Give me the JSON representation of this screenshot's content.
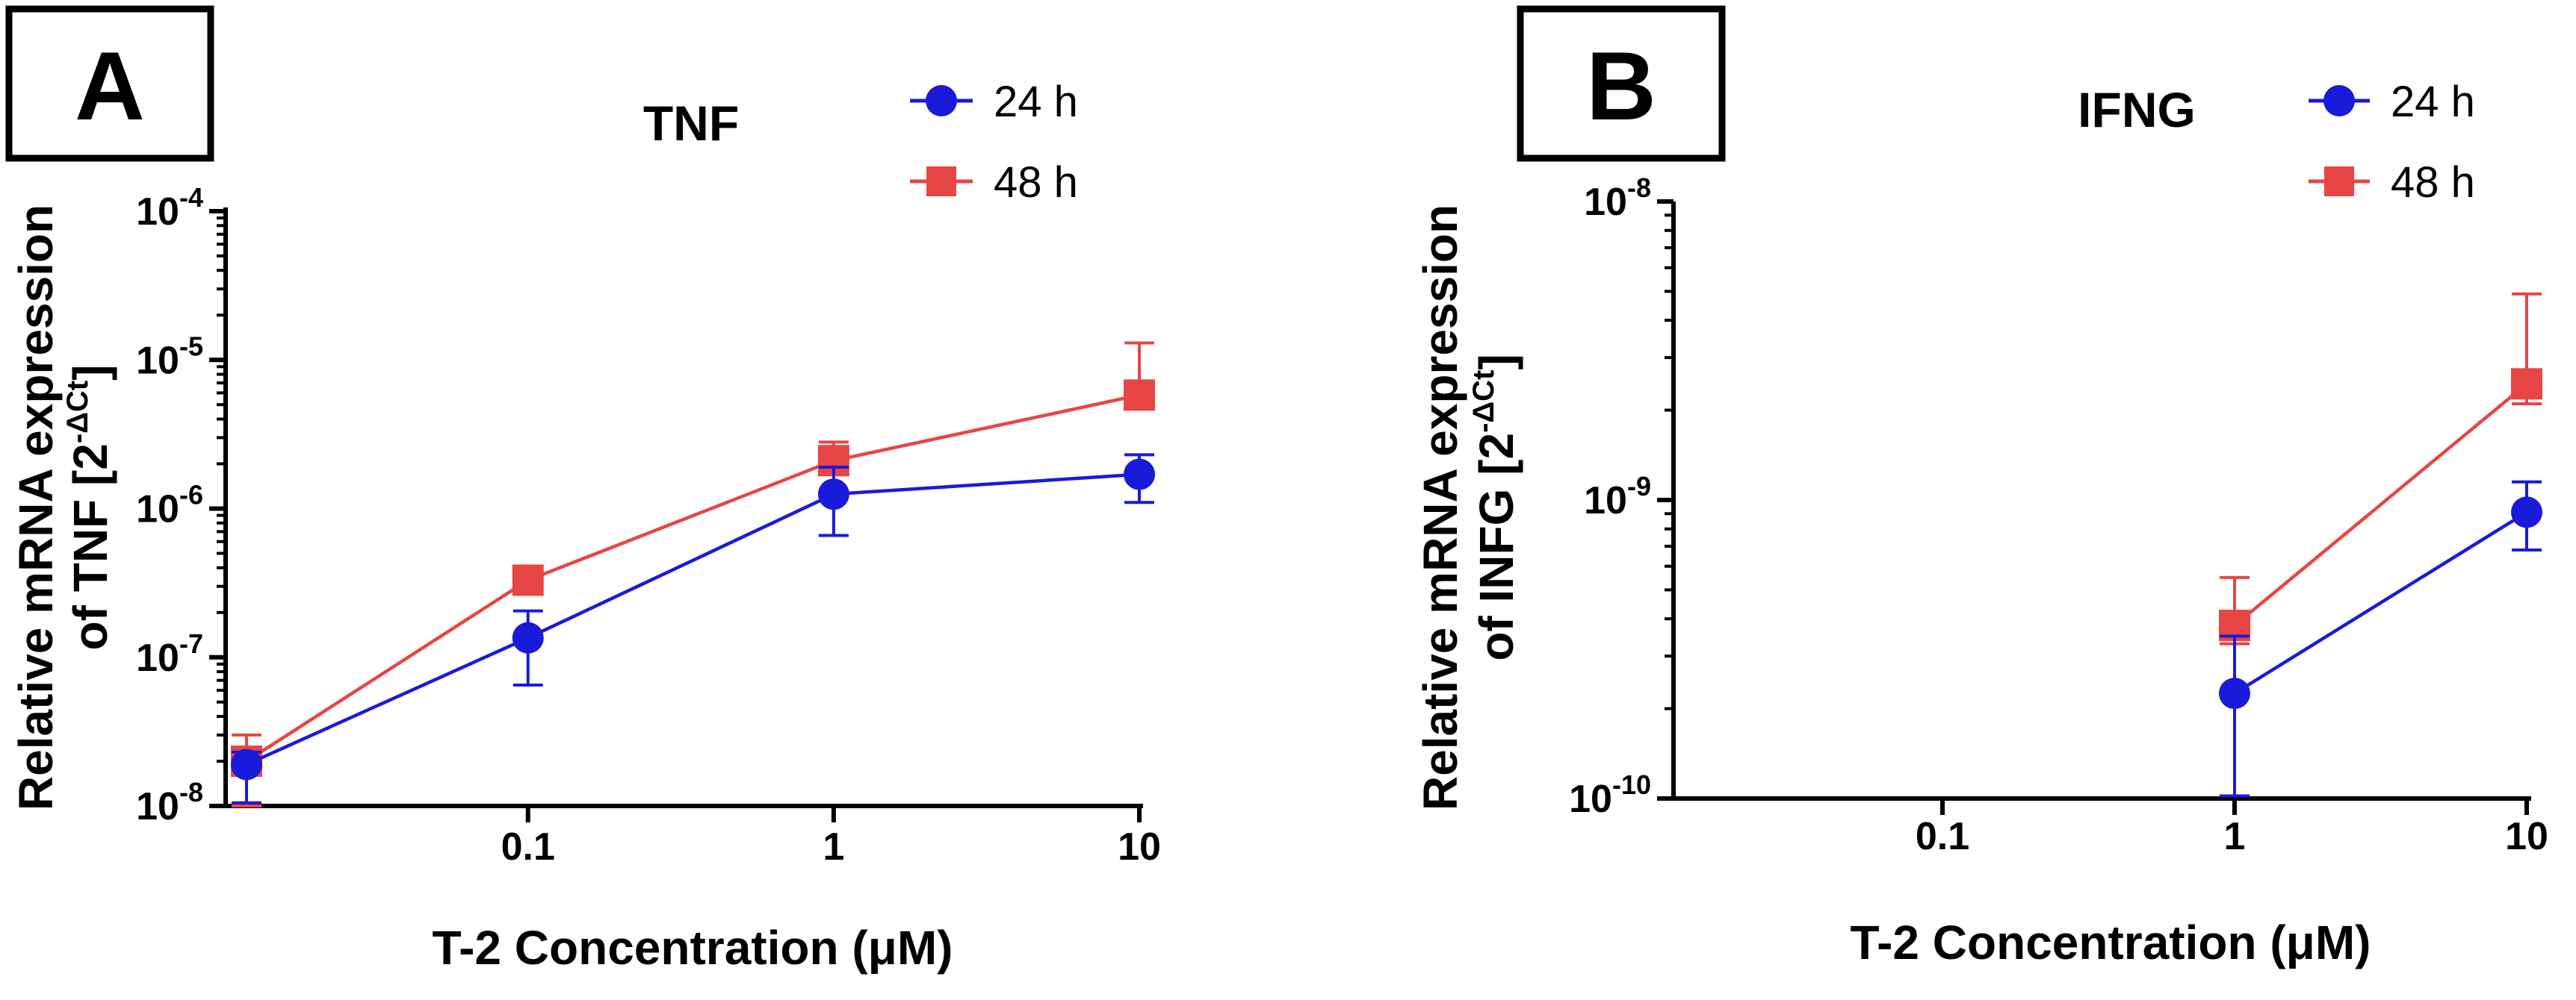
{
  "chart_data": [
    {
      "panel": "A",
      "type": "line",
      "title": "TNF",
      "xlabel": "T-2 Concentration (μM)",
      "ylabel_line1": "Relative mRNA expression",
      "ylabel_line2_prefix": "of TNF [2",
      "ylabel_line2_sup": "-ΔCt",
      "ylabel_line2_suffix": "]",
      "xscale": "log",
      "xlim": [
        0.012,
        10
      ],
      "yscale": "log",
      "ylim": [
        1e-08,
        0.0001
      ],
      "x_ticks": [
        {
          "value": 0.1,
          "label": "0.1"
        },
        {
          "value": 1,
          "label": "1"
        },
        {
          "value": 10,
          "label": "10"
        }
      ],
      "y_ticks": [
        {
          "value": 1e-08,
          "base": "10",
          "exp": "-8"
        },
        {
          "value": 1e-07,
          "base": "10",
          "exp": "-7"
        },
        {
          "value": 1e-06,
          "base": "10",
          "exp": "-6"
        },
        {
          "value": 1e-05,
          "base": "10",
          "exp": "-5"
        },
        {
          "value": 0.0001,
          "base": "10",
          "exp": "-4"
        }
      ],
      "legend_position": "top-right",
      "series": [
        {
          "name": "24 h",
          "color": "#1a1adb",
          "marker": "circle",
          "points": [
            {
              "x": 0.012,
              "y": 1.9e-08,
              "lo": 1.05e-08,
              "hi": 2.3e-08
            },
            {
              "x": 0.1,
              "y": 1.35e-07,
              "lo": 6.5e-08,
              "hi": 2.05e-07
            },
            {
              "x": 1,
              "y": 1.25e-06,
              "lo": 6.6e-07,
              "hi": 1.9e-06
            },
            {
              "x": 10,
              "y": 1.7e-06,
              "lo": 1.1e-06,
              "hi": 2.3e-06
            }
          ]
        },
        {
          "name": "48 h",
          "color": "#e84545",
          "marker": "square",
          "points": [
            {
              "x": 0.012,
              "y": 2e-08,
              "lo": 1e-08,
              "hi": 3e-08
            },
            {
              "x": 0.1,
              "y": 3.3e-07,
              "lo": 3e-07,
              "hi": 3.6e-07
            },
            {
              "x": 1,
              "y": 2.1e-06,
              "lo": 1.7e-06,
              "hi": 2.8e-06
            },
            {
              "x": 10,
              "y": 5.8e-06,
              "lo": 5e-06,
              "hi": 1.3e-05
            }
          ]
        }
      ]
    },
    {
      "panel": "B",
      "type": "line",
      "title": "IFNG",
      "xlabel": "T-2 Concentration (μM)",
      "ylabel_line1": "Relative mRNA expression",
      "ylabel_line2_prefix": "of INFG [2",
      "ylabel_line2_sup": "-ΔCt",
      "ylabel_line2_suffix": "]",
      "xscale": "log",
      "xlim": [
        0.012,
        10
      ],
      "yscale": "log",
      "ylim": [
        1e-10,
        1e-08
      ],
      "x_ticks": [
        {
          "value": 0.1,
          "label": "0.1"
        },
        {
          "value": 1,
          "label": "1"
        },
        {
          "value": 10,
          "label": "10"
        }
      ],
      "y_ticks": [
        {
          "value": 1e-10,
          "base": "10",
          "exp": "-10"
        },
        {
          "value": 1e-09,
          "base": "10",
          "exp": "-9"
        },
        {
          "value": 1e-08,
          "base": "10",
          "exp": "-8"
        }
      ],
      "legend_position": "top-right",
      "series": [
        {
          "name": "24 h",
          "color": "#1a1adb",
          "marker": "circle",
          "points": [
            {
              "x": 1,
              "y": 2.25e-10,
              "lo": 1.02e-10,
              "hi": 3.5e-10
            },
            {
              "x": 10,
              "y": 9.1e-10,
              "lo": 6.8e-10,
              "hi": 1.15e-09
            }
          ]
        },
        {
          "name": "48 h",
          "color": "#e84545",
          "marker": "square",
          "points": [
            {
              "x": 1,
              "y": 3.8e-10,
              "lo": 3.3e-10,
              "hi": 5.5e-10
            },
            {
              "x": 10,
              "y": 2.45e-09,
              "lo": 2.1e-09,
              "hi": 4.9e-09
            }
          ]
        }
      ]
    }
  ]
}
